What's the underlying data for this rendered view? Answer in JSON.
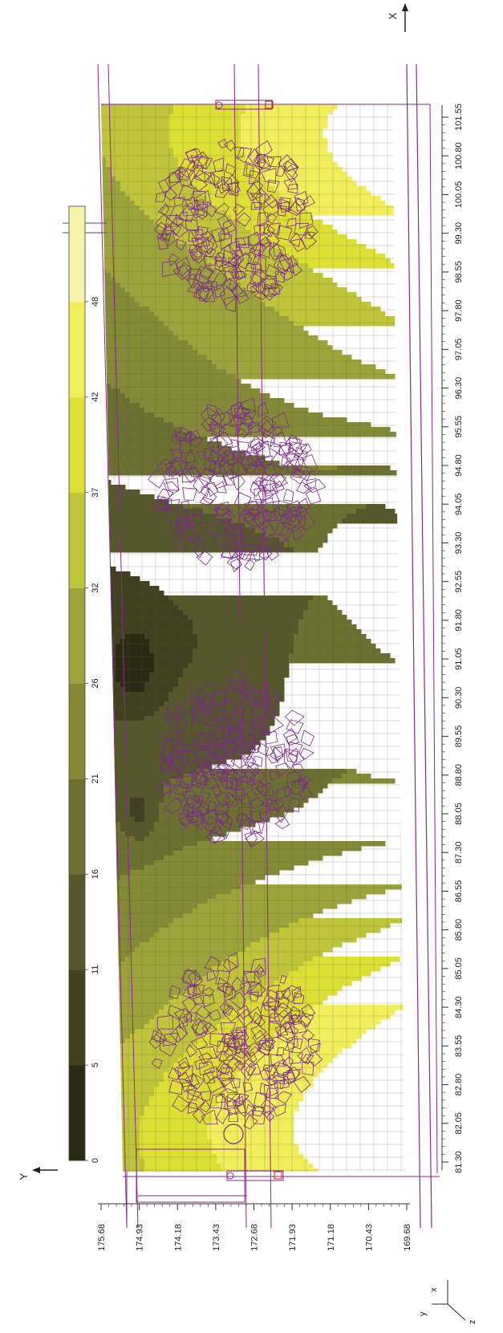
{
  "chart_data": {
    "type": "heatmap",
    "description_hint": "contour map",
    "x_axis": {
      "label": "X",
      "ticks": [
        "81.30",
        "82.05",
        "82.80",
        "83.55",
        "84.30",
        "85.05",
        "85.80",
        "86.55",
        "87.30",
        "88.05",
        "88.80",
        "89.55",
        "90.30",
        "91.05",
        "91.80",
        "92.55",
        "93.30",
        "94.05",
        "94.80",
        "95.55",
        "96.30",
        "97.05",
        "97.80",
        "98.55",
        "99.30",
        "100.05",
        "100.80",
        "101.55"
      ],
      "range": [
        81.3,
        101.55
      ]
    },
    "y_axis": {
      "label": "Y",
      "ticks": [
        "175.68",
        "174.93",
        "174.18",
        "173.43",
        "172.68",
        "171.93",
        "171.18",
        "170.43",
        "169.68"
      ],
      "range": [
        169.68,
        175.68
      ]
    },
    "colorbar": {
      "ticks": [
        "0",
        "5",
        "11",
        "16",
        "21",
        "26",
        "32",
        "37",
        "42",
        "48"
      ],
      "levels": [
        {
          "from": 0,
          "to": 5,
          "color": "#2a2a14"
        },
        {
          "from": 5,
          "to": 11,
          "color": "#3f4120"
        },
        {
          "from": 11,
          "to": 16,
          "color": "#55582a"
        },
        {
          "from": 16,
          "to": 21,
          "color": "#6c7030"
        },
        {
          "from": 21,
          "to": 26,
          "color": "#848a36"
        },
        {
          "from": 26,
          "to": 32,
          "color": "#9da33b"
        },
        {
          "from": 32,
          "to": 37,
          "color": "#bfc53a"
        },
        {
          "from": 37,
          "to": 42,
          "color": "#dcdf34"
        },
        {
          "from": 42,
          "to": 48,
          "color": "#f0ee5a"
        },
        {
          "from": 48,
          "to": 53,
          "color": "#f6f3a8"
        }
      ]
    },
    "tree_clusters_x_center": [
      83.6,
      89.1,
      94.4,
      99.5
    ],
    "tree_cluster_y_center": 173.05,
    "colors": {
      "tree_outline": "#7a2a8a",
      "frame_lines": "#8a2a8a",
      "grid": "#555555"
    },
    "corner_axes": {
      "x": "x",
      "y": "y",
      "z": "z"
    },
    "north_arrow_labels": {
      "x": "X",
      "y": "Y"
    }
  }
}
